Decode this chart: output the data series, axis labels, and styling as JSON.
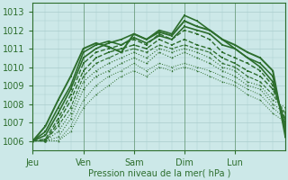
{
  "background_color": "#cce8e8",
  "plot_bg_color": "#cce8e8",
  "grid_color": "#aacccc",
  "line_color": "#2d6e2d",
  "title": "Pression niveau de la mer( hPa )",
  "xtick_labels": [
    "Jeu",
    "Ven",
    "Sam",
    "Dim",
    "Lun"
  ],
  "xtick_positions": [
    0,
    24,
    48,
    72,
    96
  ],
  "ylim": [
    1005.5,
    1013.5
  ],
  "xlim": [
    0,
    120
  ],
  "yticks": [
    1006,
    1007,
    1008,
    1009,
    1010,
    1011,
    1012,
    1013
  ],
  "lines": [
    {
      "x": [
        0,
        6,
        12,
        18,
        24,
        30,
        36,
        42,
        48,
        54,
        60,
        66,
        72,
        78,
        84,
        90,
        96,
        102,
        108,
        114,
        120
      ],
      "y": [
        1006.0,
        1006.8,
        1008.2,
        1009.5,
        1011.0,
        1011.3,
        1011.1,
        1010.8,
        1011.8,
        1011.5,
        1011.9,
        1011.7,
        1012.5,
        1012.2,
        1012.0,
        1011.5,
        1011.2,
        1010.8,
        1010.5,
        1009.8,
        1006.2
      ],
      "lw": 1.4,
      "ls": "-",
      "marker": "s",
      "ms": 2.0
    },
    {
      "x": [
        0,
        6,
        12,
        18,
        24,
        30,
        36,
        42,
        48,
        54,
        60,
        66,
        72,
        78,
        84,
        90,
        96,
        102,
        108,
        114,
        120
      ],
      "y": [
        1006.0,
        1006.5,
        1007.8,
        1009.0,
        1010.8,
        1011.2,
        1011.4,
        1011.2,
        1011.6,
        1011.3,
        1011.7,
        1011.5,
        1012.2,
        1012.0,
        1011.8,
        1011.2,
        1011.0,
        1010.5,
        1010.2,
        1009.5,
        1006.5
      ],
      "lw": 1.2,
      "ls": "-",
      "marker": "s",
      "ms": 1.8
    },
    {
      "x": [
        0,
        6,
        12,
        18,
        24,
        30,
        36,
        42,
        48,
        54,
        60,
        66,
        72,
        78,
        84,
        90,
        96,
        102,
        108,
        114,
        120
      ],
      "y": [
        1006.0,
        1006.3,
        1007.5,
        1008.8,
        1010.5,
        1011.0,
        1011.3,
        1011.5,
        1011.8,
        1011.5,
        1012.0,
        1011.8,
        1012.8,
        1012.5,
        1012.0,
        1011.5,
        1011.0,
        1010.5,
        1010.0,
        1009.2,
        1006.8
      ],
      "lw": 1.2,
      "ls": "-",
      "marker": "s",
      "ms": 1.8
    },
    {
      "x": [
        0,
        6,
        12,
        18,
        24,
        30,
        36,
        42,
        48,
        54,
        60,
        66,
        72,
        78,
        84,
        90,
        96,
        102,
        108,
        114,
        120
      ],
      "y": [
        1006.0,
        1006.1,
        1007.2,
        1008.5,
        1010.2,
        1010.8,
        1011.0,
        1011.2,
        1011.5,
        1011.2,
        1011.8,
        1011.5,
        1012.0,
        1011.8,
        1011.5,
        1010.8,
        1010.5,
        1010.2,
        1009.8,
        1009.0,
        1007.0
      ],
      "lw": 1.0,
      "ls": "--",
      "marker": "s",
      "ms": 1.5
    },
    {
      "x": [
        0,
        6,
        12,
        18,
        24,
        30,
        36,
        42,
        48,
        54,
        60,
        66,
        72,
        78,
        84,
        90,
        96,
        102,
        108,
        114,
        120
      ],
      "y": [
        1006.0,
        1006.0,
        1007.0,
        1008.2,
        1009.8,
        1010.5,
        1010.8,
        1011.0,
        1011.2,
        1011.0,
        1011.5,
        1011.2,
        1011.5,
        1011.2,
        1011.0,
        1010.5,
        1010.2,
        1009.8,
        1009.5,
        1008.8,
        1007.2
      ],
      "lw": 1.0,
      "ls": "--",
      "marker": "s",
      "ms": 1.5
    },
    {
      "x": [
        0,
        6,
        12,
        18,
        24,
        30,
        36,
        42,
        48,
        54,
        60,
        66,
        72,
        78,
        84,
        90,
        96,
        102,
        108,
        114,
        120
      ],
      "y": [
        1006.0,
        1006.0,
        1006.8,
        1007.8,
        1009.5,
        1010.2,
        1010.5,
        1010.8,
        1011.0,
        1010.8,
        1011.2,
        1011.0,
        1011.2,
        1011.0,
        1010.8,
        1010.2,
        1010.0,
        1009.5,
        1009.2,
        1008.5,
        1007.5
      ],
      "lw": 0.8,
      "ls": "--",
      "marker": "s",
      "ms": 1.3
    },
    {
      "x": [
        0,
        6,
        12,
        18,
        24,
        30,
        36,
        42,
        48,
        54,
        60,
        66,
        72,
        78,
        84,
        90,
        96,
        102,
        108,
        114,
        120
      ],
      "y": [
        1006.0,
        1006.0,
        1006.5,
        1007.5,
        1009.2,
        1009.8,
        1010.2,
        1010.5,
        1010.8,
        1010.5,
        1011.0,
        1010.8,
        1011.0,
        1010.8,
        1010.5,
        1010.0,
        1009.8,
        1009.2,
        1009.0,
        1008.2,
        1007.8
      ],
      "lw": 0.8,
      "ls": ":",
      "marker": "s",
      "ms": 1.2
    },
    {
      "x": [
        0,
        6,
        12,
        18,
        24,
        30,
        36,
        42,
        48,
        54,
        60,
        66,
        72,
        78,
        84,
        90,
        96,
        102,
        108,
        114,
        120
      ],
      "y": [
        1006.0,
        1006.0,
        1006.2,
        1007.2,
        1008.8,
        1009.5,
        1009.8,
        1010.2,
        1010.5,
        1010.2,
        1010.8,
        1010.5,
        1010.8,
        1010.5,
        1010.2,
        1009.8,
        1009.5,
        1009.0,
        1008.8,
        1008.0,
        1007.5
      ],
      "lw": 0.8,
      "ls": ":",
      "marker": "s",
      "ms": 1.2
    },
    {
      "x": [
        0,
        6,
        12,
        18,
        24,
        30,
        36,
        42,
        48,
        54,
        60,
        66,
        72,
        78,
        84,
        90,
        96,
        102,
        108,
        114,
        120
      ],
      "y": [
        1006.0,
        1006.0,
        1006.0,
        1006.8,
        1008.2,
        1009.0,
        1009.5,
        1009.8,
        1010.2,
        1009.8,
        1010.2,
        1010.0,
        1010.2,
        1010.0,
        1009.8,
        1009.5,
        1009.2,
        1008.8,
        1008.5,
        1007.8,
        1007.2
      ],
      "lw": 0.7,
      "ls": ":",
      "marker": "s",
      "ms": 1.0
    },
    {
      "x": [
        0,
        6,
        12,
        18,
        24,
        30,
        36,
        42,
        48,
        54,
        60,
        66,
        72,
        78,
        84,
        90,
        96,
        102,
        108,
        114,
        120
      ],
      "y": [
        1006.0,
        1006.0,
        1006.0,
        1006.5,
        1007.8,
        1008.5,
        1009.0,
        1009.5,
        1009.8,
        1009.5,
        1010.0,
        1009.8,
        1010.0,
        1009.8,
        1009.5,
        1009.2,
        1009.0,
        1008.5,
        1008.2,
        1007.5,
        1007.0
      ],
      "lw": 0.7,
      "ls": ":",
      "marker": "s",
      "ms": 1.0
    }
  ]
}
